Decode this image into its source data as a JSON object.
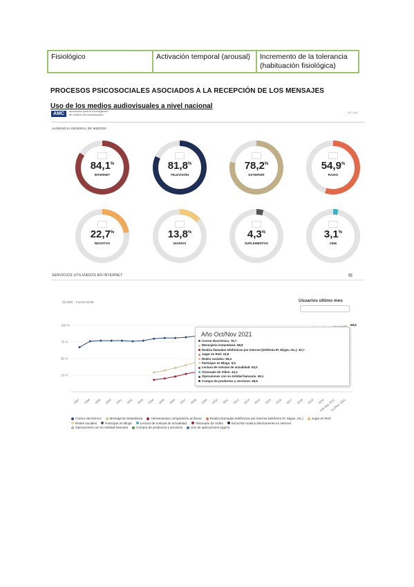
{
  "table": {
    "row": [
      "Fisiológico",
      "Activación temporal (arousal)",
      "Incremento de la tolerancia (habituación fisiológica)"
    ]
  },
  "heading": "PROCESOS PSICOSOCIALES ASOCIADOS A LA RECEPCIÓN DE LOS MENSAJES",
  "subheading": "Uso de los medios audiovisuales a nivel nacional",
  "aimc": {
    "logo": "AMC",
    "logo_text": "asociación para la investigación de medios de comunicación",
    "top_right": "ES | EN",
    "audiencia": "AUDIENCIA GENERAL DE MEDIOS",
    "servicios": "SERVICIOS UTILIZADOS EN INTERNET",
    "source": "@AIMC · Fuente EGM",
    "usuarios": "Usuarios último mes"
  },
  "donuts": [
    {
      "value": "84,1",
      "label": "INTERNET",
      "pct": 84.1,
      "color": "#8f3d3d"
    },
    {
      "value": "81,8",
      "label": "TELEVISIÓN",
      "pct": 81.8,
      "color": "#1e2e55"
    },
    {
      "value": "78,2",
      "label": "EXTERIOR",
      "pct": 78.2,
      "color": "#bfae86"
    },
    {
      "value": "54,9",
      "label": "RADIO",
      "pct": 54.9,
      "color": "#e06a4a"
    },
    {
      "value": "22,7",
      "label": "REVISTAS",
      "pct": 22.7,
      "color": "#f0a85a"
    },
    {
      "value": "13,8",
      "label": "DIARIOS",
      "pct": 13.8,
      "color": "#f2c87a"
    },
    {
      "value": "4,3",
      "label": "SUPLEMENTOS",
      "pct": 4.3,
      "color": "#555555"
    },
    {
      "value": "3,1",
      "label": "CINE",
      "pct": 3.1,
      "color": "#3fb0c8"
    }
  ],
  "chart_data": {
    "type": "line",
    "categories": [
      "1997",
      "1998",
      "1999",
      "2000",
      "2001",
      "2002",
      "2003",
      "2004",
      "2005",
      "2006",
      "2007",
      "2008",
      "2009",
      "2010",
      "2011",
      "2012",
      "2013",
      "2014",
      "2015",
      "2016",
      "2017",
      "2018",
      "2019",
      "2020",
      "Feb-Mar 2021",
      "Oct/Nov 2021"
    ],
    "y_ticks": [
      "100 %",
      "75 %",
      "50 %",
      "25 %"
    ],
    "ylim": [
      0,
      100
    ],
    "series": [
      {
        "name": "Correo electrónico",
        "color": "#2f4a7a",
        "values": [
          67,
          76,
          77,
          77,
          77,
          76,
          77,
          80,
          81,
          81,
          82,
          84,
          85,
          86,
          86,
          86,
          86,
          86,
          85,
          84,
          83,
          82,
          81,
          80,
          79,
          78.7
        ]
      },
      {
        "name": "Mensajería instantánea",
        "color": "#cfc090",
        "values": [
          null,
          null,
          null,
          null,
          null,
          null,
          null,
          29,
          32,
          36,
          40,
          45,
          50,
          60,
          70,
          80,
          85,
          90,
          92,
          94,
          95,
          96,
          97,
          97,
          98,
          98.8
        ]
      },
      {
        "name": "Herramientas compartición archivos",
        "color": "#a02030",
        "values": [
          null,
          null,
          null,
          null,
          null,
          null,
          null,
          18,
          20,
          23,
          27,
          30,
          null,
          null,
          null,
          null,
          null,
          null,
          null,
          null,
          null,
          null,
          null,
          null,
          null,
          null
        ]
      }
    ],
    "series_extra_labels": [
      "Realiza llamadas telefónicas por Internet (telefonía IP, Skype, etc.)",
      "Jugar en Red",
      "Redes sociales",
      "Participar en Blogs",
      "Lectura de noticias de actualidad",
      "Visionado de Vídeo",
      "Escuchar música directamente en Internet",
      "Operaciones con su entidad bancaria",
      "Compra de productos y servicios",
      "Uso de aplicaciones (app's)"
    ],
    "end_label": "98,8",
    "tooltip": {
      "title": "Año Oct/Nov 2021",
      "items": [
        "Correo electrónico: 78,7",
        "Mensajería instantánea: 98,8",
        "Realiza llamadas telefónicas por Internet (telefonía IP, Skype, etc.): 30,7",
        "Jugar en Red: 16,8",
        "Redes sociales: 69,4",
        "Participar en Blogs: 5,5",
        "Lectura de noticias de actualidad: 63,0",
        "Visionado de Vídeo: 44,3",
        "Operaciones con su entidad bancaria: 49,1",
        "Compra de productos y servicios: 28,6"
      ]
    },
    "legend": [
      {
        "label": "Correo electrónico",
        "color": "#2f4a7a"
      },
      {
        "label": "Mensajería instantánea",
        "color": "#cfc090"
      },
      {
        "label": "Herramientas compartición archivos",
        "color": "#a02030"
      },
      {
        "label": "Realiza llamadas telefónicas por Internet (telefonía IP, Skype, etc.)",
        "color": "#e07050"
      },
      {
        "label": "Jugar en Red",
        "color": "#f0b060"
      },
      {
        "label": "Redes sociales",
        "color": "#f2d08a"
      },
      {
        "label": "Participar en Blogs",
        "color": "#555555"
      },
      {
        "label": "Lectura de noticias de actualidad.",
        "color": "#4aa8c8"
      },
      {
        "label": "Visionado de Vídeo",
        "color": "#8b2a3a"
      },
      {
        "label": "Escuchar música directamente en Internet",
        "color": "#1e2e55"
      },
      {
        "label": "Operaciones con su entidad bancaria",
        "color": "#b0b0b0"
      },
      {
        "label": "Compra de productos y servicios",
        "color": "#5a8a5a"
      },
      {
        "label": "Uso de aplicaciones (app's)",
        "color": "#4a70b0"
      }
    ]
  }
}
